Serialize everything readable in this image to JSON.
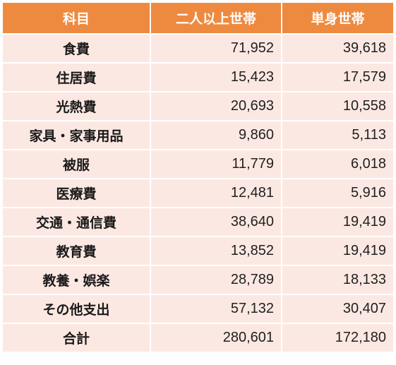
{
  "table": {
    "headers": {
      "category": "科目",
      "multi_person": "二人以上世帯",
      "single": "単身世帯"
    },
    "rows": [
      {
        "category": "食費",
        "multi_person": "71,952",
        "single": "39,618"
      },
      {
        "category": "住居費",
        "multi_person": "15,423",
        "single": "17,579"
      },
      {
        "category": "光熱費",
        "multi_person": "20,693",
        "single": "10,558"
      },
      {
        "category": "家具・家事用品",
        "multi_person": "9,860",
        "single": "5,113"
      },
      {
        "category": "被服",
        "multi_person": "11,779",
        "single": "6,018"
      },
      {
        "category": "医療費",
        "multi_person": "12,481",
        "single": "5,916"
      },
      {
        "category": "交通・通信費",
        "multi_person": "38,640",
        "single": "19,419"
      },
      {
        "category": "教育費",
        "multi_person": "13,852",
        "single": "19,419"
      },
      {
        "category": "教養・娯楽",
        "multi_person": "28,789",
        "single": "18,133"
      },
      {
        "category": "その他支出",
        "multi_person": "57,132",
        "single": "30,407"
      },
      {
        "category": "合計",
        "multi_person": "280,601",
        "single": "172,180"
      }
    ]
  },
  "colors": {
    "header_bg": "#ee8a3f",
    "row_bg": "#fce8e2",
    "header_text": "#ffffff"
  }
}
